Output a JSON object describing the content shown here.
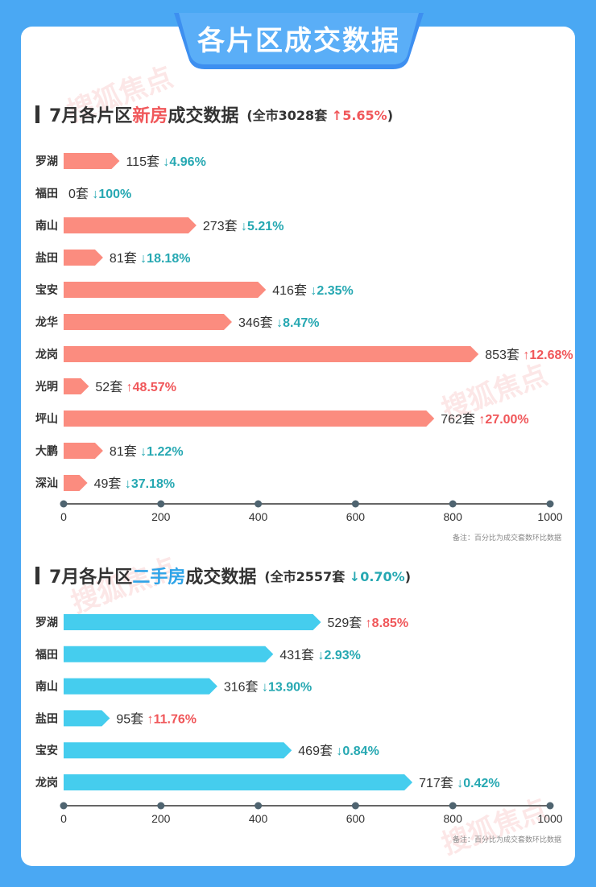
{
  "banner": {
    "title": "各片区成交数据"
  },
  "watermark": {
    "text": "搜狐焦点"
  },
  "colors": {
    "new_bar": "#fb8c7f",
    "second_bar": "#45cdee",
    "up": "#f0575a",
    "down": "#26a8b2"
  },
  "new_section": {
    "title_a": "7月各片区",
    "title_hl": "新房",
    "title_b": "成交数据",
    "total": "(全市3028套",
    "total_change": "5.65%",
    "total_dir": "up",
    "total_close": ")",
    "note": "备注：百分比为成交套数环比数据"
  },
  "second_section": {
    "title_a": "7月各片区",
    "title_hl": "二手房",
    "title_b": "成交数据",
    "total": "(全市2557套",
    "total_change": "0.70%",
    "total_dir": "down",
    "total_close": ")",
    "note": "备注：百分比为成交套数环比数据"
  },
  "chart_data": [
    {
      "type": "bar",
      "orientation": "horizontal",
      "categories": [
        "罗湖",
        "福田",
        "南山",
        "盐田",
        "宝安",
        "龙华",
        "龙岗",
        "光明",
        "坪山",
        "大鹏",
        "深汕"
      ],
      "values": [
        115,
        0,
        273,
        81,
        416,
        346,
        853,
        52,
        762,
        81,
        49
      ],
      "value_labels": [
        "115套",
        "0套",
        "273套",
        "81套",
        "416套",
        "346套",
        "853套",
        "52套",
        "762套",
        "81套",
        "49套"
      ],
      "changes": [
        "4.96%",
        "100%",
        "5.21%",
        "18.18%",
        "2.35%",
        "8.47%",
        "12.68%",
        "48.57%",
        "27.00%",
        "1.22%",
        "37.18%"
      ],
      "change_dirs": [
        "down",
        "down",
        "down",
        "down",
        "down",
        "down",
        "up",
        "up",
        "up",
        "down",
        "down"
      ],
      "xlim": [
        0,
        1000
      ],
      "xticks": [
        "0",
        "200",
        "400",
        "600",
        "800",
        "1000"
      ]
    },
    {
      "type": "bar",
      "orientation": "horizontal",
      "categories": [
        "罗湖",
        "福田",
        "南山",
        "盐田",
        "宝安",
        "龙岗"
      ],
      "values": [
        529,
        431,
        316,
        95,
        469,
        717
      ],
      "value_labels": [
        "529套",
        "431套",
        "316套",
        "95套",
        "469套",
        "717套"
      ],
      "changes": [
        "8.85%",
        "2.93%",
        "13.90%",
        "11.76%",
        "0.84%",
        "0.42%"
      ],
      "change_dirs": [
        "up",
        "down",
        "down",
        "up",
        "down",
        "down"
      ],
      "xlim": [
        0,
        1000
      ],
      "xticks": [
        "0",
        "200",
        "400",
        "600",
        "800",
        "1000"
      ]
    }
  ]
}
